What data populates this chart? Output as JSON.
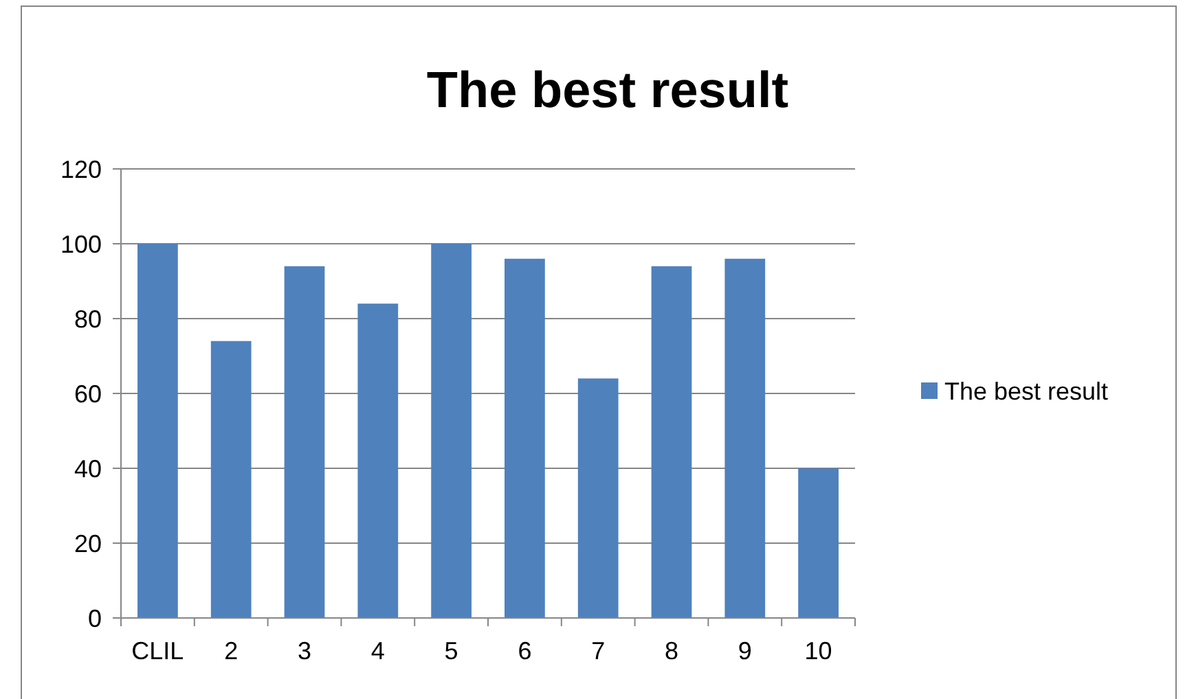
{
  "chart_data": {
    "type": "bar",
    "title": "The best result",
    "categories": [
      "CLIL",
      "2",
      "3",
      "4",
      "5",
      "6",
      "7",
      "8",
      "9",
      "10"
    ],
    "series": [
      {
        "name": "The best result",
        "color": "#4f81bd",
        "values": [
          100,
          74,
          94,
          84,
          100,
          96,
          64,
          94,
          96,
          40
        ]
      }
    ],
    "ylim": [
      0,
      120
    ],
    "yticks": [
      0,
      20,
      40,
      60,
      80,
      100,
      120
    ],
    "grid": "y",
    "legend": "right"
  }
}
